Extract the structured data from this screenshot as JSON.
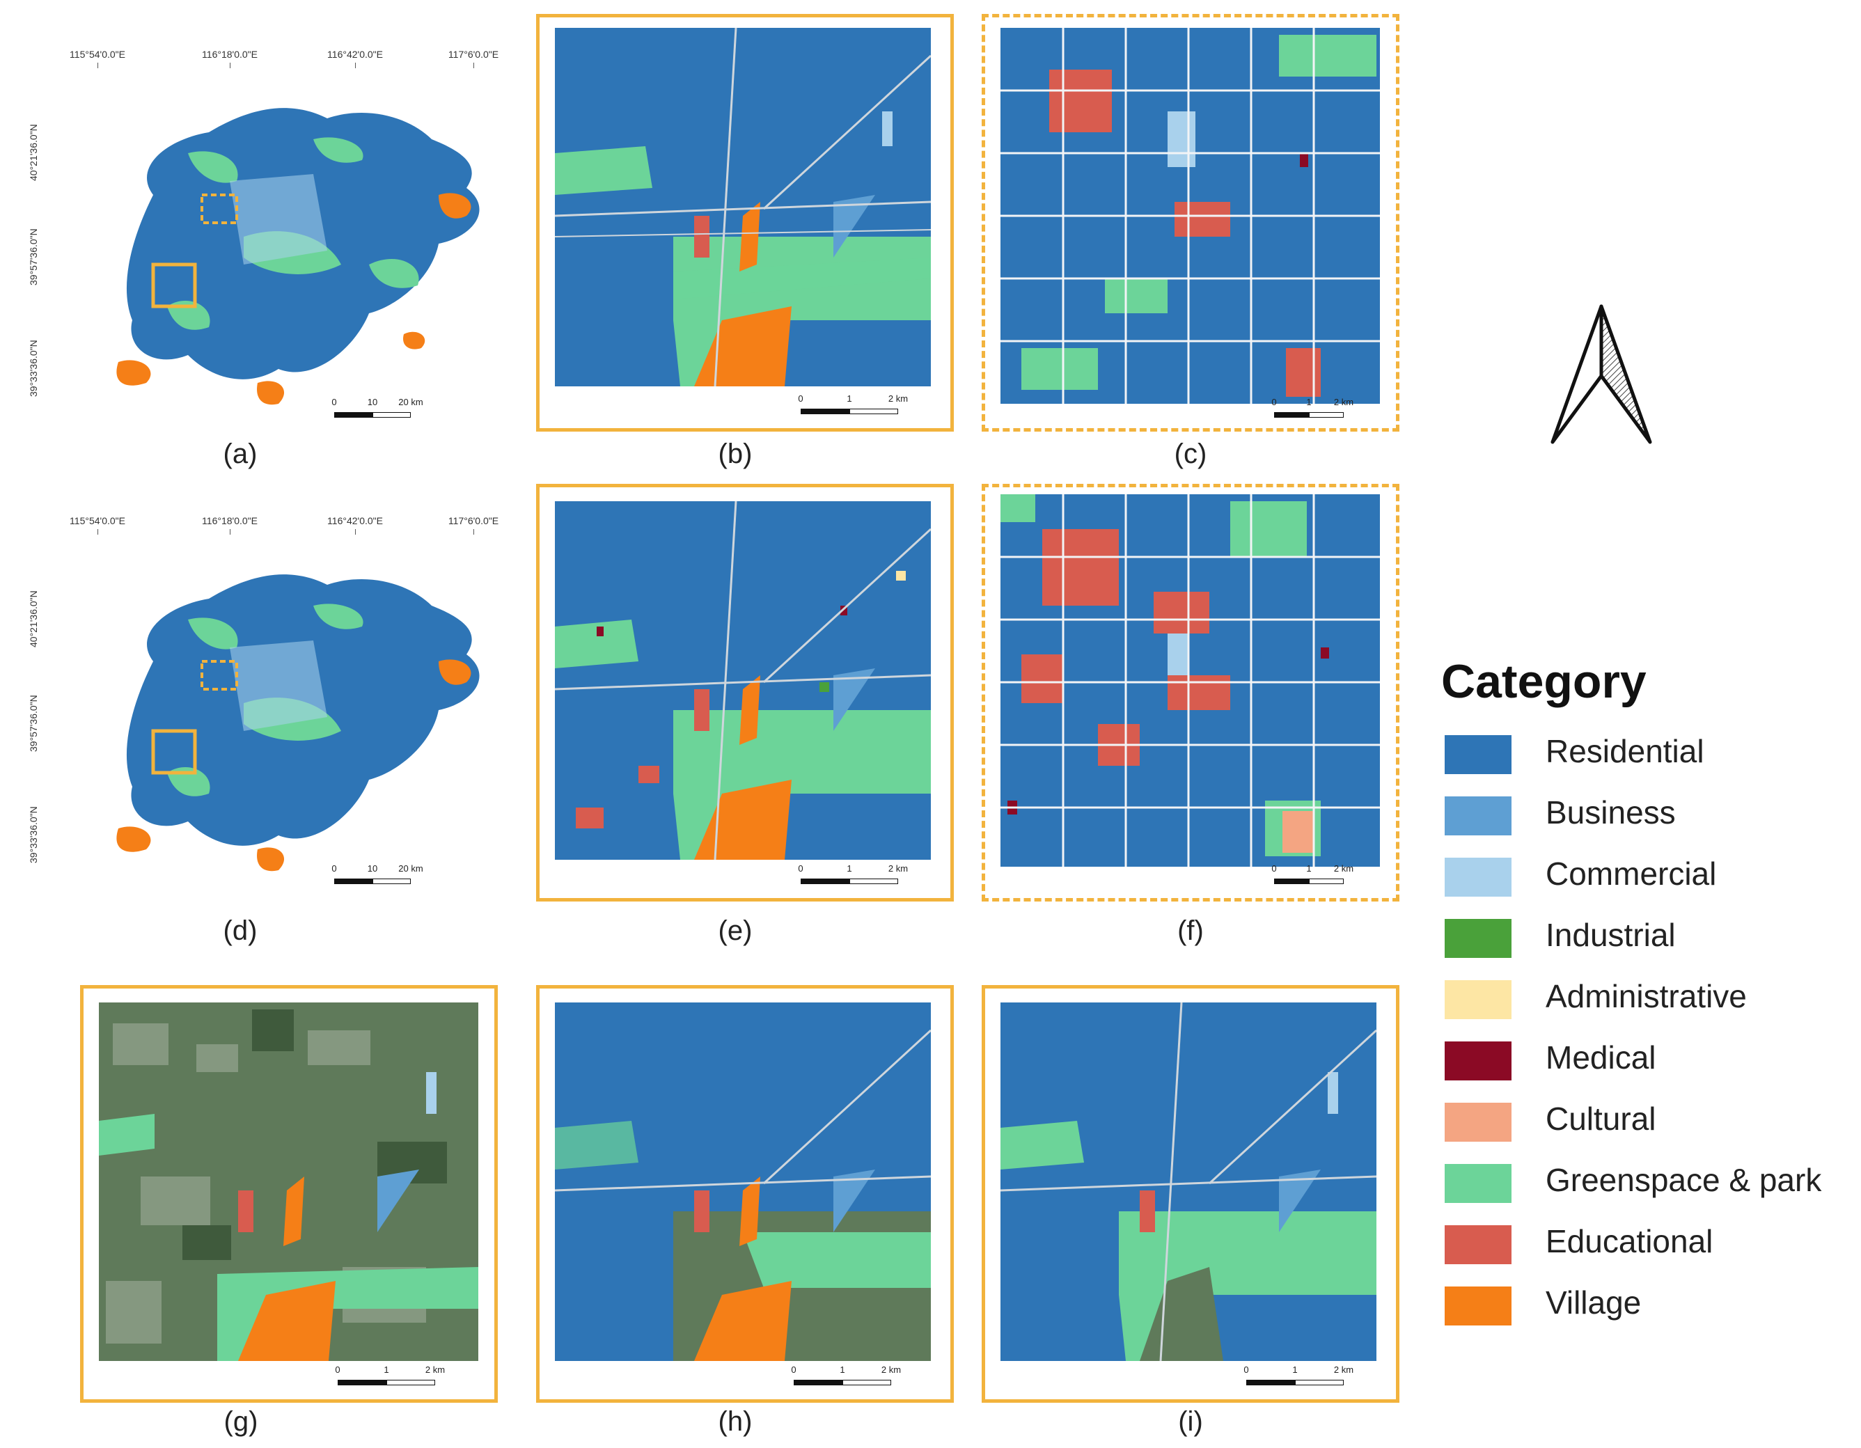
{
  "panels": {
    "a": {
      "label": "(a)"
    },
    "b": {
      "label": "(b)"
    },
    "c": {
      "label": "(c)"
    },
    "d": {
      "label": "(d)"
    },
    "e": {
      "label": "(e)"
    },
    "f": {
      "label": "(f)"
    },
    "g": {
      "label": "(g)"
    },
    "h": {
      "label": "(h)"
    },
    "i": {
      "label": "(i)"
    }
  },
  "overview_coords": {
    "lon": [
      "115°54'0.0\"E",
      "116°18'0.0\"E",
      "116°42'0.0\"E",
      "117°6'0.0\"E"
    ],
    "lat": [
      "40°21'36.0\"N",
      "39°57'36.0\"N",
      "39°33'36.0\"N"
    ]
  },
  "scalebars": {
    "overview": {
      "ticks": [
        "0",
        "10",
        "20 km"
      ]
    },
    "detail": {
      "ticks": [
        "0",
        "1",
        "2 km"
      ]
    }
  },
  "legend": {
    "title": "Category",
    "items": [
      {
        "label": "Residential",
        "color": "#2e75b6"
      },
      {
        "label": "Business",
        "color": "#5e9fd3"
      },
      {
        "label": "Commercial",
        "color": "#a9d1ec"
      },
      {
        "label": "Industrial",
        "color": "#4aa13a"
      },
      {
        "label": "Administrative",
        "color": "#fde6a4"
      },
      {
        "label": "Medical",
        "color": "#8b0a25"
      },
      {
        "label": "Cultural",
        "color": "#f4a582"
      },
      {
        "label": "Greenspace & park",
        "color": "#6cd499"
      },
      {
        "label": "Educational",
        "color": "#d85c4f"
      },
      {
        "label": "Village",
        "color": "#f57f17"
      }
    ]
  },
  "frame_color": "#f2b33d"
}
